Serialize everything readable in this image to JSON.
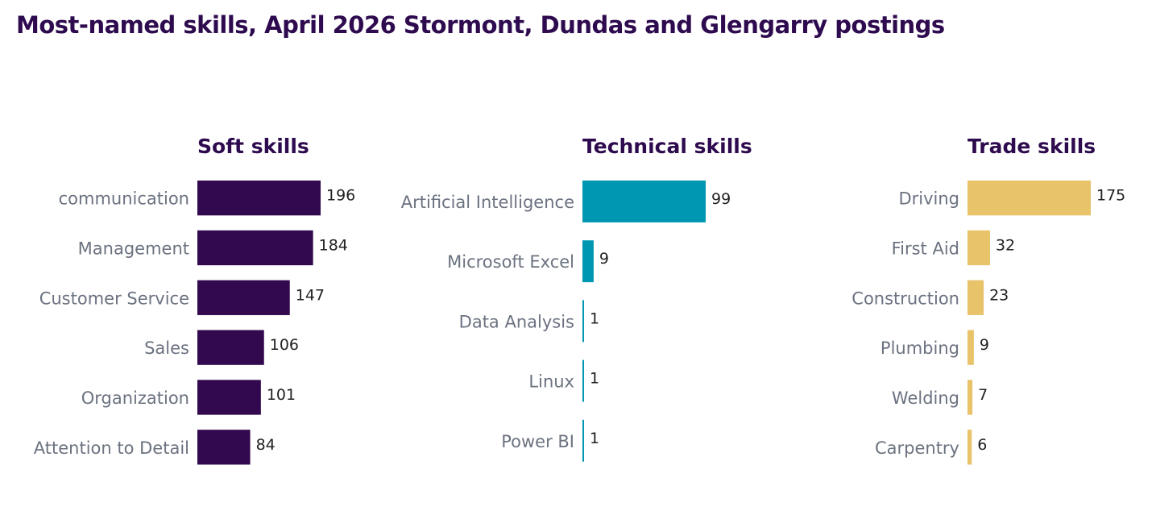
{
  "title": "Most-named skills, April 2026 Stormont, Dundas and Glengarry postings",
  "chart_data": [
    {
      "type": "bar",
      "orientation": "horizontal",
      "title": "Soft skills",
      "color": "#32084f",
      "categories": [
        "communication",
        "Management",
        "Customer Service",
        "Sales",
        "Organization",
        "Attention to Detail"
      ],
      "values": [
        196,
        184,
        147,
        106,
        101,
        84
      ],
      "xlim": [
        0,
        196
      ]
    },
    {
      "type": "bar",
      "orientation": "horizontal",
      "title": "Technical skills",
      "color": "#0097b2",
      "categories": [
        "Artificial Intelligence",
        "Microsoft Excel",
        "Data Analysis",
        "Linux",
        "Power BI"
      ],
      "values": [
        99,
        9,
        1,
        1,
        1
      ],
      "xlim": [
        0,
        99
      ]
    },
    {
      "type": "bar",
      "orientation": "horizontal",
      "title": "Trade skills",
      "color": "#e8c36a",
      "categories": [
        "Driving",
        "First Aid",
        "Construction",
        "Plumbing",
        "Welding",
        "Carpentry"
      ],
      "values": [
        175,
        32,
        23,
        9,
        7,
        6
      ],
      "xlim": [
        0,
        175
      ]
    }
  ],
  "colors": {
    "title": "#2e0a4f",
    "category_label": "#6b7280",
    "value_label": "#222222"
  }
}
